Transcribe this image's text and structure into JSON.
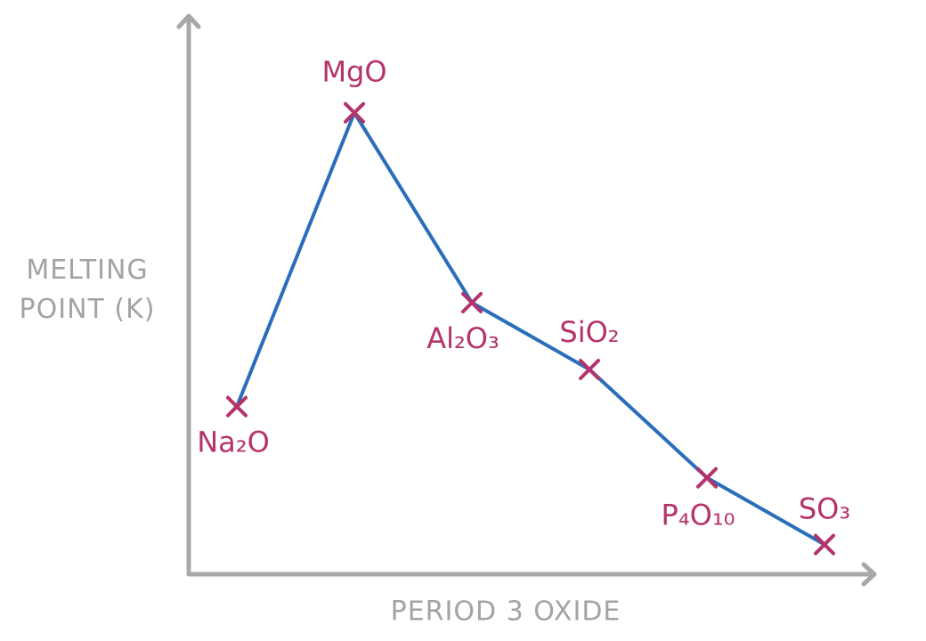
{
  "chart_data": {
    "type": "line",
    "x_label": "PERIOD 3 OXIDE",
    "y_label": "MELTING POINT (K)",
    "categories": [
      "Na₂O",
      "MgO",
      "Al₂O₃",
      "SiO₂",
      "P₄O₁₀",
      "SO₃"
    ],
    "series": [
      {
        "color": "#2a6ebb",
        "marker_color": "#b5336b",
        "values": [
          1130,
          3110,
          1830,
          1380,
          650,
          200
        ]
      }
    ],
    "ylim": [
      0,
      3750
    ]
  }
}
